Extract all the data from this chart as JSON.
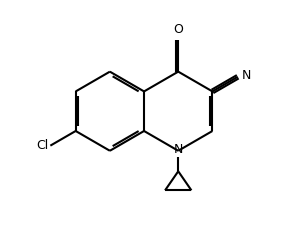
{
  "background_color": "#ffffff",
  "line_color": "#000000",
  "line_width": 1.5,
  "fig_width": 2.98,
  "fig_height": 2.4,
  "dpi": 100,
  "xlim": [
    0,
    10
  ],
  "ylim": [
    0,
    8
  ]
}
